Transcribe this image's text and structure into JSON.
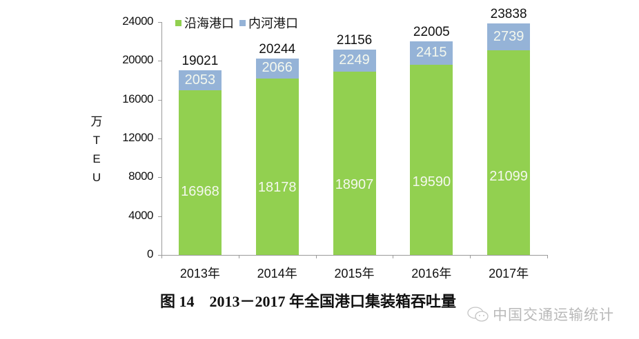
{
  "chart_data": {
    "type": "bar",
    "stacked": true,
    "title": "图 14    2013－2017 年全国港口集装箱吞吐量",
    "xlabel": "",
    "ylabel": "万TEU",
    "ylim": [
      0,
      24000
    ],
    "yticks": [
      0,
      4000,
      8000,
      12000,
      16000,
      20000,
      24000
    ],
    "grid": false,
    "legend_position": "top",
    "categories": [
      "2013年",
      "2014年",
      "2015年",
      "2016年",
      "2017年"
    ],
    "series": [
      {
        "name": "沿海港口",
        "color": "#92d050",
        "values": [
          16968,
          18178,
          18907,
          19590,
          21099
        ]
      },
      {
        "name": "内河港口",
        "color": "#95b3d7",
        "values": [
          2053,
          2066,
          2249,
          2415,
          2739
        ]
      }
    ],
    "totals": [
      19021,
      20244,
      21156,
      22005,
      23838
    ]
  },
  "ylabel_chars": [
    "万",
    "T",
    "E",
    "U"
  ],
  "legend": [
    {
      "label": "沿海港口",
      "color": "#92d050"
    },
    {
      "label": "内河港口",
      "color": "#95b3d7"
    }
  ],
  "caption": "图 14    2013－2017 年全国港口集装箱吞吐量",
  "watermark": {
    "icon": "wechat-icon",
    "text": "中国交通运输统计"
  }
}
